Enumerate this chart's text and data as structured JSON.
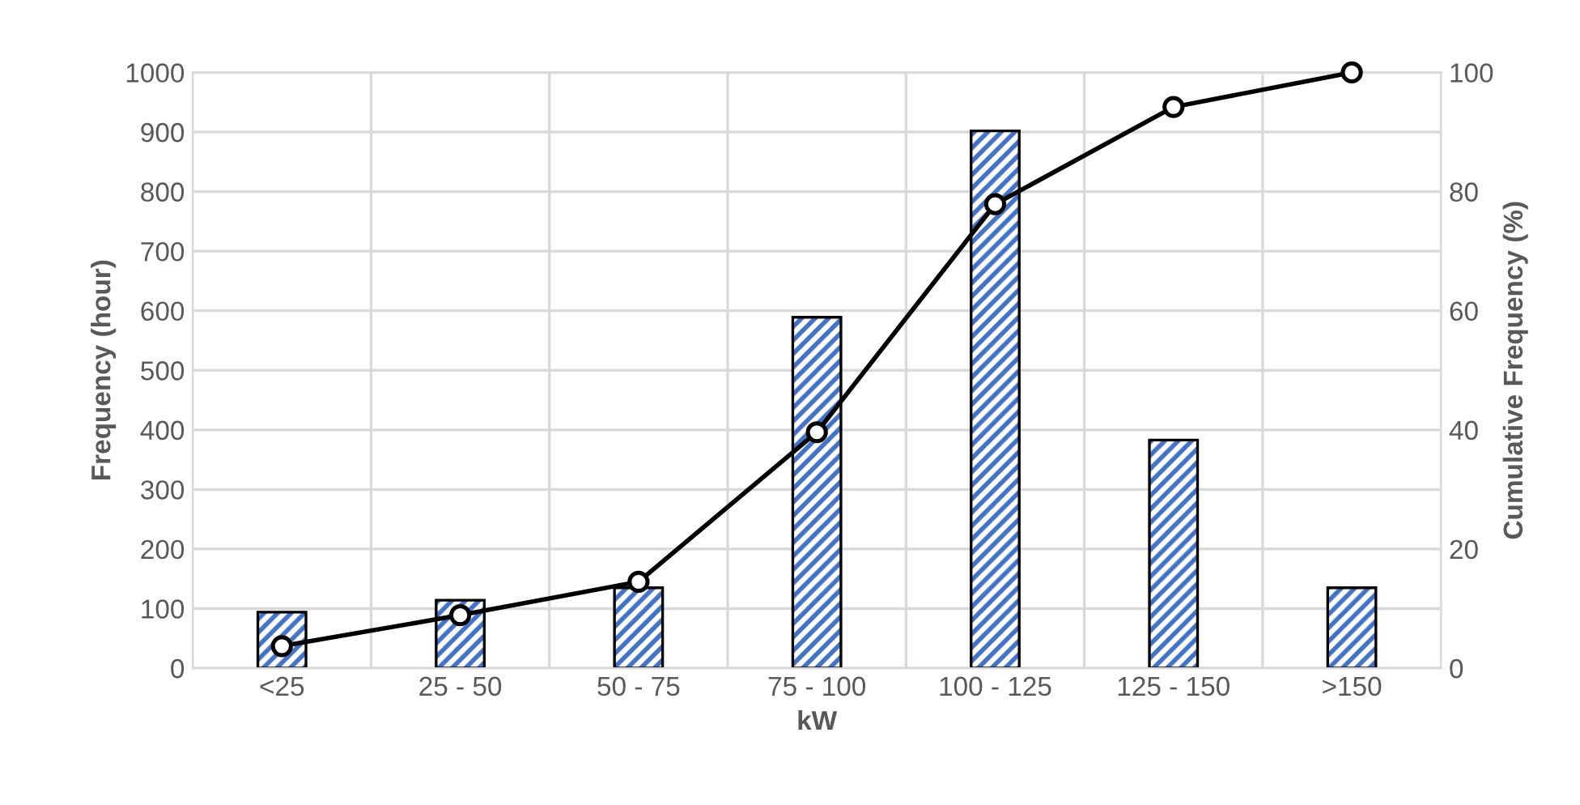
{
  "chart_data": {
    "type": "bar",
    "xlabel": "kW",
    "ylabel": "Frequency (hour)",
    "y2label": "Cumulative Frequency (%)",
    "categories": [
      "<25",
      "25 - 50",
      "50 - 75",
      "75 - 100",
      "100 - 125",
      "125 - 150",
      ">150"
    ],
    "series": [
      {
        "color": "#4472c4",
        "values": [
          94,
          114,
          135,
          589,
          902,
          383,
          135
        ]
      },
      {
        "type": "line",
        "axis": "y2",
        "color": "#000000",
        "marker": "circle",
        "values": [
          3.7,
          8.9,
          14.5,
          39.6,
          77.9,
          94.2,
          100
        ]
      }
    ],
    "ylim": [
      0,
      1000
    ],
    "yticks": [
      0,
      100,
      200,
      300,
      400,
      500,
      600,
      700,
      800,
      900,
      1000
    ],
    "y2lim": [
      0,
      100
    ],
    "y2ticks": [
      0,
      20,
      40,
      60,
      80,
      100
    ],
    "grid": true
  }
}
